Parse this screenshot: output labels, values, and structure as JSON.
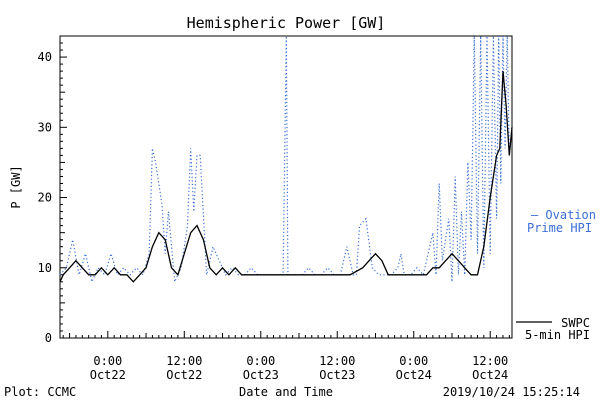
{
  "chart_data": {
    "type": "line",
    "title": "Hemispheric Power [GW]",
    "xlabel": "Date and Time",
    "ylabel": "P [GW]",
    "ylim": [
      0,
      43
    ],
    "xlim": [
      "2019-10-21T16:30",
      "2019-10-24T15:25"
    ],
    "yticks": [
      0,
      10,
      20,
      30,
      40
    ],
    "xticks": [
      {
        "t": "2019-10-22T00:00",
        "line1": "0:00",
        "line2": "Oct22"
      },
      {
        "t": "2019-10-22T12:00",
        "line1": "12:00",
        "line2": "Oct22"
      },
      {
        "t": "2019-10-23T00:00",
        "line1": "0:00",
        "line2": "Oct23"
      },
      {
        "t": "2019-10-23T12:00",
        "line1": "12:00",
        "line2": "Oct23"
      },
      {
        "t": "2019-10-24T00:00",
        "line1": "0:00",
        "line2": "Oct24"
      },
      {
        "t": "2019-10-24T12:00",
        "line1": "12:00",
        "line2": "Oct24"
      }
    ],
    "grid": false,
    "legend_placement": "right",
    "series": [
      {
        "name": "SWPC 5-min HPI",
        "style": "solid",
        "color": "#000000",
        "x": [
          "2019-10-21T16:30",
          "2019-10-21T17:00",
          "2019-10-21T18:00",
          "2019-10-21T19:00",
          "2019-10-21T20:00",
          "2019-10-21T21:00",
          "2019-10-21T22:00",
          "2019-10-21T23:00",
          "2019-10-22T00:00",
          "2019-10-22T01:00",
          "2019-10-22T02:00",
          "2019-10-22T03:00",
          "2019-10-22T04:00",
          "2019-10-22T05:00",
          "2019-10-22T06:00",
          "2019-10-22T07:00",
          "2019-10-22T08:00",
          "2019-10-22T09:00",
          "2019-10-22T10:00",
          "2019-10-22T11:00",
          "2019-10-22T12:00",
          "2019-10-22T13:00",
          "2019-10-22T14:00",
          "2019-10-22T15:00",
          "2019-10-22T16:00",
          "2019-10-22T17:00",
          "2019-10-22T18:00",
          "2019-10-22T19:00",
          "2019-10-22T20:00",
          "2019-10-22T21:00",
          "2019-10-22T22:00",
          "2019-10-22T23:00",
          "2019-10-23T00:00",
          "2019-10-23T02:00",
          "2019-10-23T04:00",
          "2019-10-23T06:00",
          "2019-10-23T08:00",
          "2019-10-23T10:00",
          "2019-10-23T12:00",
          "2019-10-23T14:00",
          "2019-10-23T16:00",
          "2019-10-23T17:00",
          "2019-10-23T18:00",
          "2019-10-23T19:00",
          "2019-10-23T20:00",
          "2019-10-23T21:00",
          "2019-10-23T22:00",
          "2019-10-23T23:00",
          "2019-10-24T00:00",
          "2019-10-24T01:00",
          "2019-10-24T02:00",
          "2019-10-24T03:00",
          "2019-10-24T04:00",
          "2019-10-24T05:00",
          "2019-10-24T06:00",
          "2019-10-24T07:00",
          "2019-10-24T08:00",
          "2019-10-24T09:00",
          "2019-10-24T10:00",
          "2019-10-24T11:00",
          "2019-10-24T12:00",
          "2019-10-24T13:00",
          "2019-10-24T13:30",
          "2019-10-24T14:00",
          "2019-10-24T14:30",
          "2019-10-24T15:00",
          "2019-10-24T15:25"
        ],
        "values": [
          8,
          9,
          10,
          11,
          10,
          9,
          9,
          10,
          9,
          10,
          9,
          9,
          8,
          9,
          10,
          13,
          15,
          14,
          10,
          9,
          12,
          15,
          16,
          14,
          10,
          9,
          10,
          9,
          10,
          9,
          9,
          9,
          9,
          9,
          9,
          9,
          9,
          9,
          9,
          9,
          10,
          11,
          12,
          11,
          9,
          9,
          9,
          9,
          9,
          9,
          9,
          10,
          10,
          11,
          12,
          11,
          10,
          9,
          9,
          13,
          20,
          26,
          27,
          38,
          33,
          26,
          30
        ]
      },
      {
        "name": "Ovation Prime HPI",
        "style": "dotted",
        "color": "#3a6fd8",
        "x": [
          "2019-10-21T16:30",
          "2019-10-21T17:30",
          "2019-10-21T18:30",
          "2019-10-21T19:30",
          "2019-10-21T20:30",
          "2019-10-21T21:30",
          "2019-10-21T22:30",
          "2019-10-21T23:30",
          "2019-10-22T00:30",
          "2019-10-22T01:30",
          "2019-10-22T02:30",
          "2019-10-22T03:30",
          "2019-10-22T04:30",
          "2019-10-22T05:30",
          "2019-10-22T06:30",
          "2019-10-22T07:00",
          "2019-10-22T07:30",
          "2019-10-22T08:30",
          "2019-10-22T09:00",
          "2019-10-22T09:30",
          "2019-10-22T10:30",
          "2019-10-22T11:30",
          "2019-10-22T12:30",
          "2019-10-22T13:00",
          "2019-10-22T13:30",
          "2019-10-22T14:00",
          "2019-10-22T14:30",
          "2019-10-22T15:30",
          "2019-10-22T16:30",
          "2019-10-22T17:30",
          "2019-10-22T18:30",
          "2019-10-22T19:30",
          "2019-10-22T20:30",
          "2019-10-22T21:30",
          "2019-10-22T22:30",
          "2019-10-22T23:30",
          "2019-10-23T00:30",
          "2019-10-23T01:30",
          "2019-10-23T02:30",
          "2019-10-23T03:30",
          "2019-10-23T04:00",
          "2019-10-23T04:15",
          "2019-10-23T04:30",
          "2019-10-23T05:30",
          "2019-10-23T06:30",
          "2019-10-23T07:30",
          "2019-10-23T08:30",
          "2019-10-23T09:30",
          "2019-10-23T10:30",
          "2019-10-23T11:30",
          "2019-10-23T12:30",
          "2019-10-23T13:30",
          "2019-10-23T14:30",
          "2019-10-23T15:00",
          "2019-10-23T15:30",
          "2019-10-23T16:30",
          "2019-10-23T17:30",
          "2019-10-23T18:30",
          "2019-10-23T19:30",
          "2019-10-23T20:30",
          "2019-10-23T21:30",
          "2019-10-23T22:00",
          "2019-10-23T22:30",
          "2019-10-23T23:30",
          "2019-10-24T00:30",
          "2019-10-24T01:30",
          "2019-10-24T02:30",
          "2019-10-24T03:00",
          "2019-10-24T03:30",
          "2019-10-24T04:00",
          "2019-10-24T04:30",
          "2019-10-24T05:30",
          "2019-10-24T06:00",
          "2019-10-24T06:30",
          "2019-10-24T07:00",
          "2019-10-24T07:30",
          "2019-10-24T08:00",
          "2019-10-24T08:30",
          "2019-10-24T09:00",
          "2019-10-24T09:30",
          "2019-10-24T10:00",
          "2019-10-24T10:30",
          "2019-10-24T11:00",
          "2019-10-24T11:30",
          "2019-10-24T12:00",
          "2019-10-24T12:30",
          "2019-10-24T13:00",
          "2019-10-24T13:20",
          "2019-10-24T13:40",
          "2019-10-24T14:00",
          "2019-10-24T14:20",
          "2019-10-24T14:40",
          "2019-10-24T15:00",
          "2019-10-24T15:25"
        ],
        "values": [
          9,
          10,
          14,
          9,
          12,
          8,
          10,
          9,
          12,
          9,
          10,
          9,
          10,
          9,
          12,
          27,
          25,
          19,
          12,
          18,
          8,
          10,
          16,
          27,
          18,
          26,
          26,
          9,
          13,
          11,
          9,
          10,
          9,
          9,
          10,
          9,
          9,
          9,
          9,
          9,
          43,
          9,
          9,
          9,
          9,
          10,
          9,
          9,
          10,
          9,
          9,
          13,
          9,
          9,
          16,
          17,
          10,
          9,
          9,
          9,
          10,
          12,
          9,
          9,
          10,
          9,
          13,
          15,
          9,
          22,
          11,
          17,
          8,
          23,
          9,
          18,
          9,
          25,
          14,
          43,
          12,
          43,
          10,
          43,
          12,
          43,
          17,
          43,
          22,
          43,
          27,
          43,
          26,
          30
        ]
      }
    ],
    "legend": [
      {
        "text": "SWPC",
        "text2": "5-min HPI",
        "color": "#000000"
      },
      {
        "text": "— Ovation",
        "text2": "Prime HPI",
        "color": "#3a6fd8"
      }
    ],
    "footer": {
      "left": "Plot: CCMC",
      "timestamp": "2019/10/24 15:25:14"
    }
  }
}
